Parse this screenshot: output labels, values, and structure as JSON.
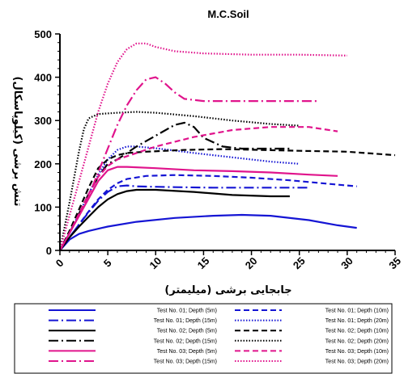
{
  "chart_data": {
    "type": "line",
    "title": "M.C.Soil",
    "xlabel": "جابجایی برشی (میلیمتر)",
    "ylabel": "تنش برشی (کیلوپاسکال)",
    "xlim": [
      0,
      35
    ],
    "ylim": [
      0,
      500
    ],
    "xticks": [
      "0",
      "5",
      "10",
      "15",
      "20",
      "25",
      "30",
      "35"
    ],
    "yticks": [
      "0",
      "100",
      "200",
      "300",
      "400",
      "500"
    ],
    "grid": false,
    "legend_position": "bottom",
    "series": [
      {
        "name": "Test No. 01; Depth (5m)",
        "color": "#1515d4",
        "dash": "solid",
        "x": [
          0,
          1,
          2,
          3,
          5,
          8,
          12,
          16,
          19,
          22,
          26,
          29,
          31
        ],
        "y": [
          0,
          25,
          38,
          45,
          55,
          66,
          75,
          80,
          82,
          80,
          70,
          58,
          52
        ]
      },
      {
        "name": "Test No. 01; Depth (10m)",
        "color": "#1515d4",
        "dash": "dash",
        "x": [
          0,
          1,
          2,
          3,
          4,
          5,
          6,
          7,
          9,
          12,
          16,
          20,
          24,
          28,
          31
        ],
        "y": [
          0,
          30,
          60,
          90,
          118,
          140,
          155,
          165,
          172,
          174,
          172,
          168,
          162,
          154,
          148
        ]
      },
      {
        "name": "Test No. 01; Depth (15m)",
        "color": "#1515d4",
        "dash": "dashdot",
        "x": [
          0,
          1,
          2,
          3,
          4,
          5,
          6,
          7,
          8,
          12,
          16,
          20,
          24,
          26
        ],
        "y": [
          0,
          30,
          60,
          88,
          115,
          135,
          148,
          150,
          148,
          146,
          145,
          145,
          145,
          145
        ]
      },
      {
        "name": "Test No. 01; Depth (20m)",
        "color": "#1515d4",
        "dash": "dot",
        "x": [
          0,
          1,
          2,
          3,
          4,
          5,
          6,
          7,
          8,
          10,
          14,
          18,
          22,
          25
        ],
        "y": [
          0,
          40,
          85,
          130,
          175,
          210,
          232,
          240,
          240,
          236,
          225,
          215,
          205,
          200
        ]
      },
      {
        "name": "Test No. 02; Depth (5m)",
        "color": "#000000",
        "dash": "solid",
        "x": [
          0,
          1,
          2,
          3,
          4,
          5,
          6,
          7,
          8,
          10,
          14,
          18,
          22,
          24
        ],
        "y": [
          0,
          30,
          55,
          78,
          100,
          118,
          130,
          137,
          140,
          140,
          135,
          128,
          125,
          125
        ]
      },
      {
        "name": "Test No. 02; Depth (10m)",
        "color": "#000000",
        "dash": "dash",
        "x": [
          0,
          1,
          2,
          3,
          4,
          5,
          6,
          7,
          9,
          13,
          17,
          21,
          25,
          30,
          35
        ],
        "y": [
          0,
          45,
          95,
          145,
          190,
          210,
          220,
          225,
          228,
          232,
          234,
          232,
          230,
          228,
          220
        ]
      },
      {
        "name": "Test No. 02; Depth (15m)",
        "color": "#000000",
        "dash": "dashdot",
        "x": [
          0,
          1,
          2,
          3,
          4,
          5,
          6,
          8,
          10,
          12,
          13,
          14,
          15,
          17,
          19,
          22,
          24
        ],
        "y": [
          0,
          40,
          85,
          130,
          170,
          200,
          210,
          240,
          265,
          290,
          295,
          285,
          260,
          240,
          235,
          235,
          235
        ]
      },
      {
        "name": "Test No. 02; Depth (20m)",
        "color": "#000000",
        "dash": "dot",
        "x": [
          0,
          1,
          2,
          2.5,
          3,
          4,
          6,
          8,
          10,
          14,
          18,
          22,
          25
        ],
        "y": [
          0,
          110,
          230,
          280,
          305,
          315,
          318,
          320,
          318,
          310,
          300,
          292,
          288
        ]
      },
      {
        "name": "Test No. 03; Depth (5m)",
        "color": "#e0148c",
        "dash": "solid",
        "x": [
          0,
          1,
          2,
          3,
          4,
          5,
          6,
          7,
          10,
          14,
          18,
          22,
          26,
          29
        ],
        "y": [
          0,
          40,
          80,
          120,
          160,
          185,
          193,
          193,
          190,
          185,
          183,
          180,
          175,
          172
        ]
      },
      {
        "name": "Test No. 03; Depth (10m)",
        "color": "#e0148c",
        "dash": "dash",
        "x": [
          0,
          1,
          2,
          3,
          4,
          5,
          6,
          8,
          10,
          14,
          18,
          22,
          26,
          29
        ],
        "y": [
          0,
          40,
          85,
          130,
          170,
          195,
          210,
          225,
          240,
          262,
          278,
          285,
          285,
          275
        ]
      },
      {
        "name": "Test No. 03; Depth (15m)",
        "color": "#e0148c",
        "dash": "dashdot",
        "x": [
          0,
          1,
          2,
          3,
          4,
          5,
          6,
          7,
          8,
          9,
          10,
          11,
          12,
          13,
          15,
          20,
          25,
          27
        ],
        "y": [
          0,
          40,
          80,
          125,
          180,
          235,
          290,
          335,
          370,
          395,
          400,
          385,
          365,
          350,
          345,
          345,
          345,
          345
        ]
      },
      {
        "name": "Test No. 03; Depth (20m)",
        "color": "#e0148c",
        "dash": "dot",
        "x": [
          0,
          1,
          2,
          3,
          4,
          5,
          6,
          7,
          8,
          9,
          10,
          12,
          15,
          20,
          25,
          30
        ],
        "y": [
          0,
          80,
          160,
          240,
          320,
          385,
          435,
          465,
          478,
          478,
          470,
          460,
          455,
          452,
          452,
          450
        ]
      }
    ]
  }
}
